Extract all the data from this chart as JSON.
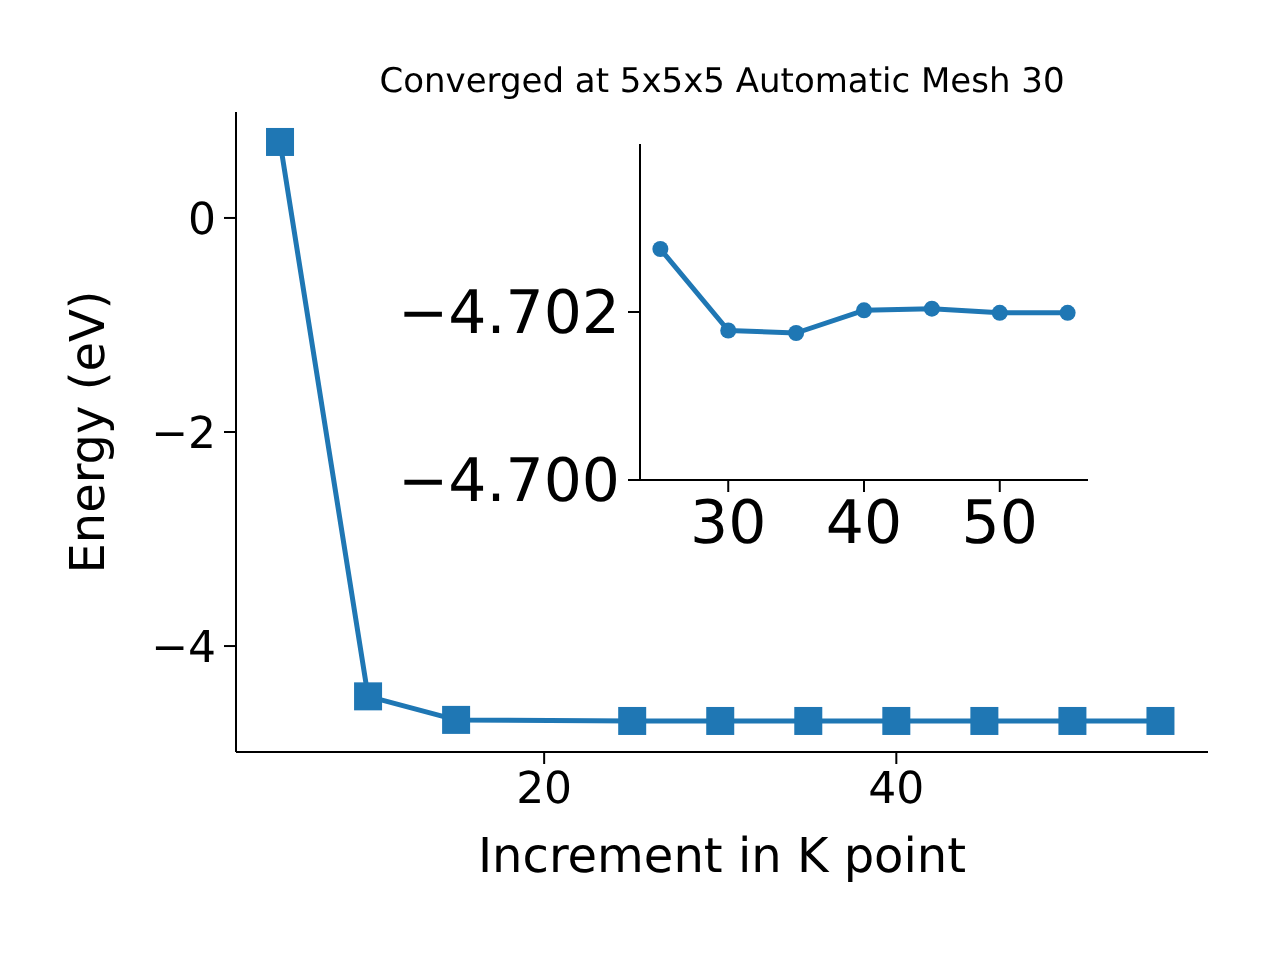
{
  "chart_data": [
    {
      "type": "line",
      "title": "Converged at 5x5x5 Automatic Mesh 30",
      "xlabel": "Increment in K point",
      "ylabel": "Energy (eV)",
      "x": [
        5,
        10,
        15,
        25,
        30,
        35,
        40,
        45,
        50,
        55
      ],
      "series": [
        {
          "color": "#1f77b4",
          "values": [
            0.71,
            -4.47,
            -4.69,
            -4.7,
            -4.7,
            -4.7,
            -4.7,
            -4.7,
            -4.7,
            -4.7
          ]
        }
      ],
      "xlim": [
        2.5,
        57.7
      ],
      "xticks": [
        20,
        40
      ],
      "ylim": [
        -4.99,
        0.99
      ],
      "yticks": [
        {
          "value": 0,
          "label": "0"
        },
        {
          "value": -2,
          "label": "−2"
        },
        {
          "value": -4,
          "label": "−4"
        }
      ],
      "marker": "square",
      "grid": false,
      "legend": false
    },
    {
      "type": "line",
      "x": [
        25,
        30,
        35,
        40,
        45,
        50,
        55
      ],
      "series": [
        {
          "color": "#1f77b4",
          "values": [
            -4.70275,
            -4.70178,
            -4.70175,
            -4.70202,
            -4.70204,
            -4.70199,
            -4.70199
          ]
        }
      ],
      "xlim": [
        23.5,
        56.5
      ],
      "xticks": [
        30,
        40,
        50
      ],
      "ylim": [
        -4.7,
        -4.704
      ],
      "yticks": [
        {
          "value": -4.702,
          "label": "−4.702"
        },
        {
          "value": -4.7,
          "label": "−4.700"
        }
      ],
      "marker": "circle",
      "grid": false,
      "legend": false
    }
  ]
}
